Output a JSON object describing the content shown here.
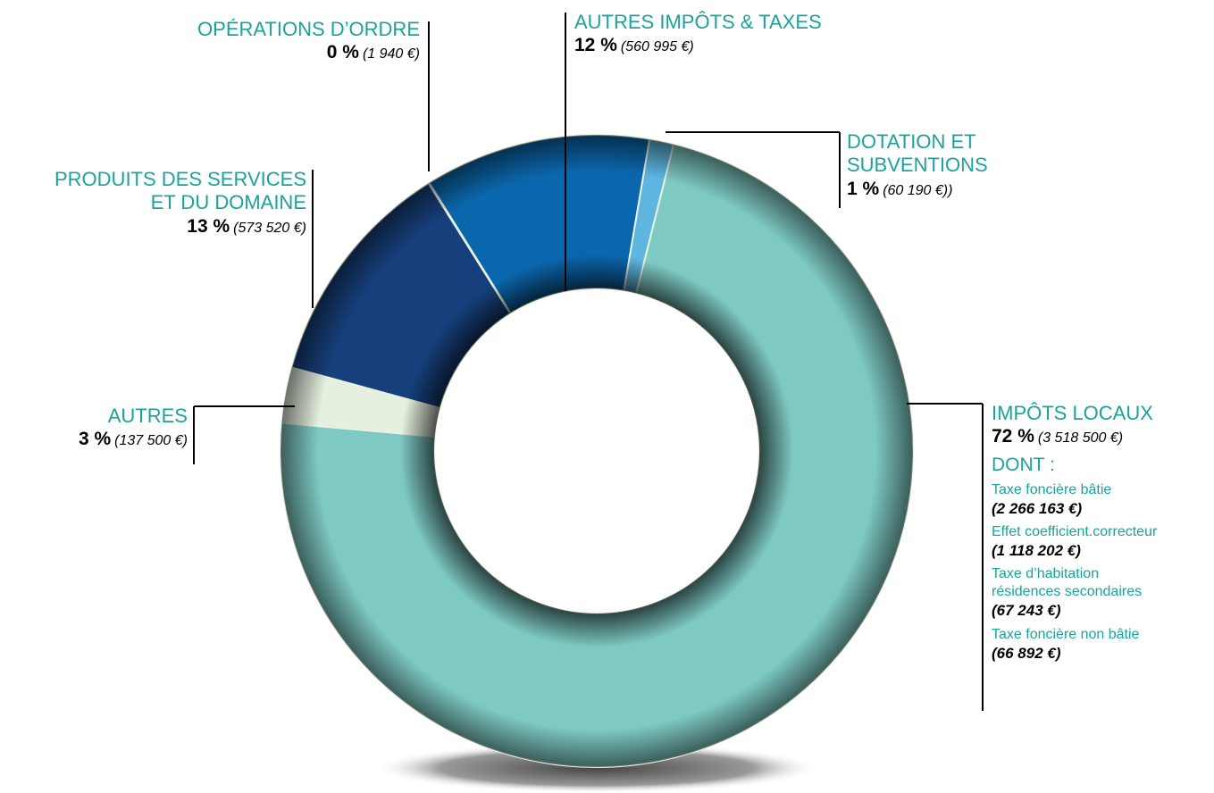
{
  "chart_data": {
    "type": "pie",
    "categories": [
      "AUTRES IMPÔTS & TAXES",
      "DOTATION ET\nSUBVENTIONS",
      "IMPÔTS LOCAUX",
      "AUTRES",
      "PRODUITS DES SERVICES\nET DU DOMAINE",
      "OPÉRATIONS D’ORDRE"
    ],
    "values": [
      560995,
      60190,
      3518500,
      137500,
      573520,
      1940
    ],
    "value_labels": [
      "(560 995 €)",
      "(60 190 €))",
      "(3 518 500 €)",
      "(137 500 €)",
      "(573 520 €)",
      "(1 940 €)"
    ],
    "shares": [
      12,
      1,
      72,
      3,
      13,
      0
    ],
    "share_labels": [
      "12 %",
      "1 %",
      "72 %",
      "3 %",
      "13 %",
      "0 %"
    ],
    "colors": [
      "#0b67ad",
      "#5db5e0",
      "#7ec9c3",
      "#e6f0df",
      "#173f7b",
      "#e8f1e2"
    ],
    "donut": true,
    "breakdown": {
      "title": "DONT :",
      "items": [
        {
          "name": "Taxe foncière bâtie",
          "value": 2266163,
          "value_label": "(2 266 163 €)"
        },
        {
          "name": "Effet coefficient.correcteur",
          "value": 1118202,
          "value_label": "(1 118 202 €)"
        },
        {
          "name": "Taxe d’habitation\nrésidences secondaires",
          "value": 67243,
          "value_label": "(67 243 €)"
        },
        {
          "name": "Taxe foncière non bâtie",
          "value": 66892,
          "value_label": "(66 892 €)"
        }
      ]
    }
  }
}
